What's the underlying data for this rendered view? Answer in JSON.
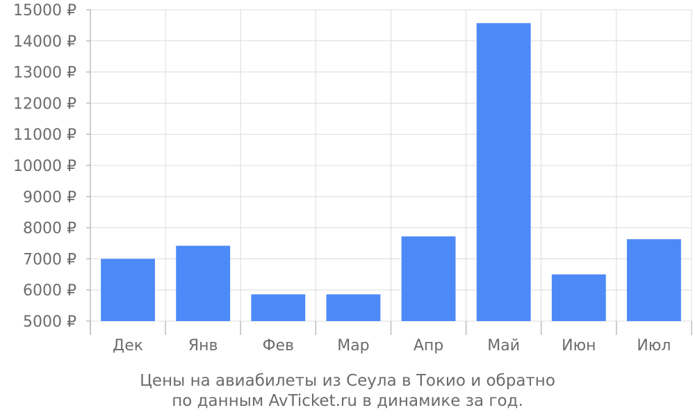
{
  "chart_data": {
    "type": "bar",
    "categories": [
      "Дек",
      "Янв",
      "Фев",
      "Мар",
      "Апр",
      "Май",
      "Июн",
      "Июл"
    ],
    "values": [
      7000,
      7420,
      5860,
      5860,
      7720,
      14570,
      6500,
      7630
    ],
    "ylim": [
      5000,
      15000
    ],
    "ytick_step": 1000,
    "ytick_labels": [
      "5000 ₽",
      "6000 ₽",
      "7000 ₽",
      "8000 ₽",
      "9000 ₽",
      "10000 ₽",
      "11000 ₽",
      "12000 ₽",
      "13000 ₽",
      "14000 ₽",
      "15000 ₽"
    ],
    "grid": true,
    "bar_color": "#4d8af8",
    "caption_lines": [
      "Цены на авиабилеты из Сеула в Токио и обратно",
      "по данным AvTicket.ru в динамике за год."
    ]
  }
}
